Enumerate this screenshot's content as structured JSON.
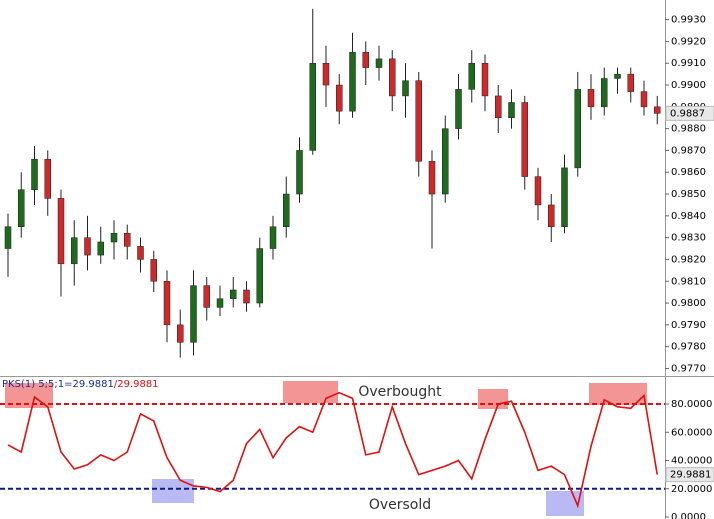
{
  "chart_data": [
    {
      "type": "candlestick",
      "up_color": "#1e6b1e",
      "down_color": "#cc2a2a",
      "open": [
        0.9825,
        0.9835,
        0.9852,
        0.9866,
        0.9848,
        0.9818,
        0.983,
        0.9822,
        0.9828,
        0.9832,
        0.9826,
        0.982,
        0.981,
        0.979,
        0.9782,
        0.9808,
        0.9798,
        0.9802,
        0.9806,
        0.98,
        0.9825,
        0.9835,
        0.985,
        0.987,
        0.991,
        0.99,
        0.9888,
        0.9915,
        0.9908,
        0.9912,
        0.9895,
        0.9902,
        0.9865,
        0.985,
        0.988,
        0.9898,
        0.991,
        0.9895,
        0.9885,
        0.9892,
        0.9858,
        0.9845,
        0.9835,
        0.9862,
        0.9898,
        0.989,
        0.9903,
        0.9905,
        0.9897,
        0.989
      ],
      "high": [
        0.9841,
        0.986,
        0.9872,
        0.987,
        0.9852,
        0.9838,
        0.984,
        0.9835,
        0.9838,
        0.9836,
        0.983,
        0.9824,
        0.9815,
        0.9797,
        0.9815,
        0.9812,
        0.9808,
        0.9812,
        0.981,
        0.983,
        0.984,
        0.9858,
        0.9876,
        0.9935,
        0.9918,
        0.9905,
        0.9924,
        0.992,
        0.9918,
        0.9916,
        0.991,
        0.9906,
        0.987,
        0.9886,
        0.9905,
        0.9916,
        0.9914,
        0.99,
        0.9898,
        0.9895,
        0.9862,
        0.985,
        0.9868,
        0.9906,
        0.9905,
        0.9908,
        0.9908,
        0.9908,
        0.9902,
        0.9895
      ],
      "low": [
        0.9812,
        0.983,
        0.9845,
        0.984,
        0.9803,
        0.9808,
        0.9815,
        0.9818,
        0.982,
        0.982,
        0.9814,
        0.9805,
        0.9782,
        0.9775,
        0.9776,
        0.9792,
        0.9794,
        0.9798,
        0.9796,
        0.9798,
        0.982,
        0.983,
        0.9846,
        0.9868,
        0.989,
        0.9882,
        0.9885,
        0.99,
        0.9902,
        0.9888,
        0.9885,
        0.9858,
        0.9825,
        0.9846,
        0.9875,
        0.9892,
        0.9888,
        0.9878,
        0.988,
        0.9852,
        0.9838,
        0.9828,
        0.9832,
        0.9858,
        0.9884,
        0.9886,
        0.9896,
        0.9892,
        0.9886,
        0.9882
      ],
      "close": [
        0.9835,
        0.9852,
        0.9866,
        0.9848,
        0.9818,
        0.983,
        0.9822,
        0.9828,
        0.9832,
        0.9826,
        0.982,
        0.981,
        0.979,
        0.9782,
        0.9808,
        0.9798,
        0.9802,
        0.9806,
        0.98,
        0.9825,
        0.9835,
        0.985,
        0.987,
        0.991,
        0.99,
        0.9888,
        0.9915,
        0.9908,
        0.9912,
        0.9895,
        0.9902,
        0.9865,
        0.985,
        0.988,
        0.9898,
        0.991,
        0.9895,
        0.9885,
        0.9892,
        0.9858,
        0.9845,
        0.9835,
        0.9862,
        0.9898,
        0.989,
        0.9903,
        0.9905,
        0.9897,
        0.989,
        0.9887
      ],
      "ylim": [
        0.9767,
        0.9939
      ],
      "yticks": [
        {
          "value": 0.977,
          "label": "0.9770"
        },
        {
          "value": 0.978,
          "label": "0.9780"
        },
        {
          "value": 0.979,
          "label": "0.9790"
        },
        {
          "value": 0.98,
          "label": "0.9800"
        },
        {
          "value": 0.981,
          "label": "0.9810"
        },
        {
          "value": 0.982,
          "label": "0.9820"
        },
        {
          "value": 0.983,
          "label": "0.9830"
        },
        {
          "value": 0.984,
          "label": "0.9840"
        },
        {
          "value": 0.985,
          "label": "0.9850"
        },
        {
          "value": 0.986,
          "label": "0.9860"
        },
        {
          "value": 0.987,
          "label": "0.9870"
        },
        {
          "value": 0.988,
          "label": "0.9880"
        },
        {
          "value": 0.989,
          "label": "0.9890"
        },
        {
          "value": 0.99,
          "label": "0.9900"
        },
        {
          "value": 0.991,
          "label": "0.9910"
        },
        {
          "value": 0.992,
          "label": "0.9920"
        },
        {
          "value": 0.993,
          "label": "0.9930"
        }
      ]
    },
    {
      "type": "line",
      "title": "PKS(1) 5;5;1=29.9881",
      "title_tail": "/29.9881",
      "color": "#e01010",
      "values": [
        51,
        46,
        85,
        78,
        46,
        34,
        37,
        44,
        40,
        46,
        73,
        68,
        42,
        26,
        22,
        21,
        18,
        26,
        52,
        62,
        42,
        56,
        64,
        60,
        84,
        88,
        84,
        44,
        46,
        78,
        52,
        30,
        33,
        36,
        40,
        27,
        55,
        80,
        82,
        60,
        33,
        36,
        30,
        8,
        50,
        83,
        78,
        77,
        86,
        29.9881
      ],
      "levels": [
        {
          "value": 80,
          "label": "Overbought",
          "color": "#e01010"
        },
        {
          "value": 20,
          "label": "Oversold",
          "color": "#0a1a8a"
        }
      ],
      "ylim": [
        -1.4,
        98.4
      ],
      "yticks": [
        {
          "value": 0,
          "label": "0.0000"
        },
        {
          "value": 20,
          "label": "20.0000"
        },
        {
          "value": 40,
          "label": "40.0000"
        },
        {
          "value": 60,
          "label": "60.0000"
        },
        {
          "value": 80,
          "label": "80.0000"
        }
      ]
    }
  ]
}
